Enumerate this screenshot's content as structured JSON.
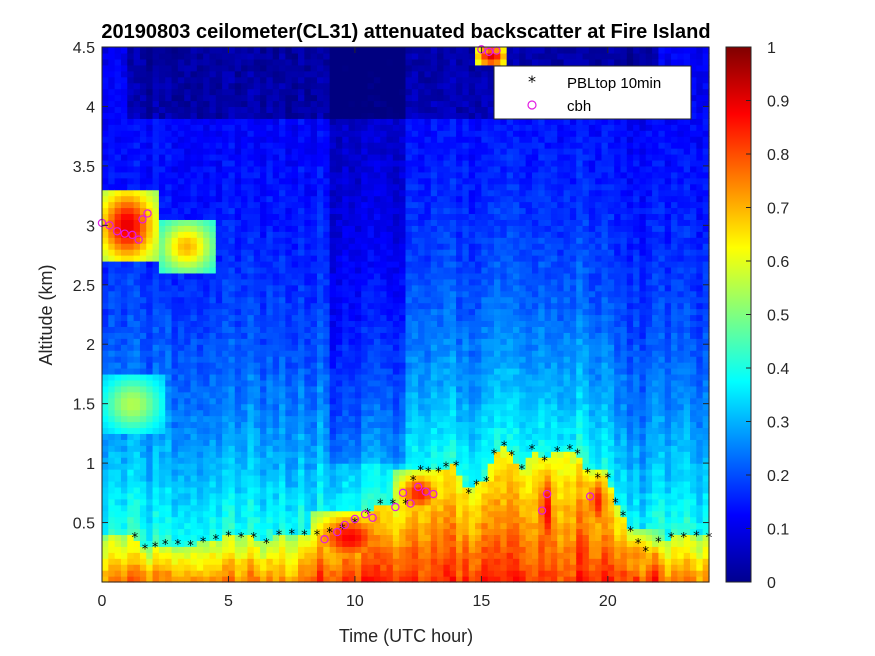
{
  "chart_data": {
    "type": "heatmap",
    "title": "20190803 ceilometer(CL31) attenuated backscatter at Fire Island",
    "xlabel": "Time (UTC hour)",
    "ylabel": "Altitude (km)",
    "xlim": [
      0,
      24
    ],
    "ylim": [
      0,
      4.5
    ],
    "xticks": [
      0,
      5,
      10,
      15,
      20
    ],
    "yticks": [
      0.5,
      1,
      1.5,
      2,
      2.5,
      3,
      3.5,
      4,
      4.5
    ],
    "colorbar": {
      "min": 0,
      "max": 1,
      "ticks": [
        0,
        0.1,
        0.2,
        0.3,
        0.4,
        0.5,
        0.6,
        0.7,
        0.8,
        0.9,
        1
      ],
      "colormap": "jet"
    },
    "legend": {
      "position": "top-right"
    },
    "series": [
      {
        "name": "PBLtop 10min",
        "marker": "*",
        "color": "#000000",
        "points": [
          [
            1.3,
            0.38
          ],
          [
            1.7,
            0.28
          ],
          [
            2.1,
            0.3
          ],
          [
            2.5,
            0.32
          ],
          [
            3.0,
            0.32
          ],
          [
            3.5,
            0.31
          ],
          [
            4.0,
            0.34
          ],
          [
            4.5,
            0.36
          ],
          [
            5.0,
            0.39
          ],
          [
            5.5,
            0.38
          ],
          [
            6.0,
            0.38
          ],
          [
            6.5,
            0.33
          ],
          [
            7.0,
            0.4
          ],
          [
            7.5,
            0.41
          ],
          [
            8.0,
            0.4
          ],
          [
            8.5,
            0.4
          ],
          [
            9.0,
            0.42
          ],
          [
            9.5,
            0.45
          ],
          [
            10.0,
            0.5
          ],
          [
            10.5,
            0.58
          ],
          [
            11.0,
            0.66
          ],
          [
            11.5,
            0.66
          ],
          [
            12.0,
            0.66
          ],
          [
            12.3,
            0.86
          ],
          [
            12.6,
            0.94
          ],
          [
            12.9,
            0.93
          ],
          [
            13.3,
            0.93
          ],
          [
            13.6,
            0.97
          ],
          [
            14.0,
            0.98
          ],
          [
            14.5,
            0.75
          ],
          [
            14.8,
            0.82
          ],
          [
            15.2,
            0.85
          ],
          [
            15.5,
            1.08
          ],
          [
            15.9,
            1.15
          ],
          [
            16.2,
            1.07
          ],
          [
            16.6,
            0.95
          ],
          [
            17.0,
            1.12
          ],
          [
            17.5,
            1.02
          ],
          [
            18.0,
            1.1
          ],
          [
            18.5,
            1.12
          ],
          [
            18.8,
            1.08
          ],
          [
            19.2,
            0.92
          ],
          [
            19.6,
            0.88
          ],
          [
            20.0,
            0.88
          ],
          [
            20.3,
            0.67
          ],
          [
            20.6,
            0.56
          ],
          [
            20.9,
            0.43
          ],
          [
            21.2,
            0.33
          ],
          [
            21.5,
            0.26
          ],
          [
            22.0,
            0.34
          ],
          [
            22.5,
            0.38
          ],
          [
            23.0,
            0.38
          ],
          [
            23.5,
            0.39
          ],
          [
            24.0,
            0.38
          ]
        ]
      },
      {
        "name": "cbh",
        "marker": "o",
        "color": "#e21be2",
        "points": [
          [
            0.0,
            3.02
          ],
          [
            0.3,
            3.0
          ],
          [
            0.6,
            2.95
          ],
          [
            0.9,
            2.93
          ],
          [
            1.2,
            2.92
          ],
          [
            1.45,
            2.88
          ],
          [
            1.6,
            3.05
          ],
          [
            1.8,
            3.1
          ],
          [
            8.8,
            0.36
          ],
          [
            9.3,
            0.42
          ],
          [
            9.6,
            0.48
          ],
          [
            10.0,
            0.53
          ],
          [
            10.4,
            0.57
          ],
          [
            10.7,
            0.54
          ],
          [
            11.6,
            0.63
          ],
          [
            11.9,
            0.75
          ],
          [
            12.2,
            0.66
          ],
          [
            12.5,
            0.8
          ],
          [
            12.8,
            0.76
          ],
          [
            13.1,
            0.74
          ],
          [
            17.4,
            0.6
          ],
          [
            17.6,
            0.74
          ],
          [
            19.3,
            0.72
          ],
          [
            15.0,
            4.48
          ],
          [
            15.3,
            4.46
          ],
          [
            15.6,
            4.47
          ]
        ]
      }
    ],
    "field_features": [
      {
        "value": 0.9,
        "t": [
          0.1,
          1.9
        ],
        "z": [
          2.75,
          3.25
        ]
      },
      {
        "value": 0.7,
        "t": [
          2.5,
          4.2
        ],
        "z": [
          2.65,
          3.0
        ]
      },
      {
        "value": 0.55,
        "t": [
          0.2,
          2.2
        ],
        "z": [
          1.3,
          1.7
        ]
      },
      {
        "value": 0.88,
        "t": [
          8.6,
          11.0
        ],
        "z": [
          0.2,
          0.55
        ]
      },
      {
        "value": 0.85,
        "t": [
          11.8,
          13.3
        ],
        "z": [
          0.6,
          0.9
        ]
      },
      {
        "value": 0.9,
        "t": [
          17.3,
          17.8
        ],
        "z": [
          0.25,
          0.95
        ]
      },
      {
        "value": 0.85,
        "t": [
          19.2,
          20.0
        ],
        "z": [
          0.45,
          0.9
        ]
      },
      {
        "value": 0.9,
        "t": [
          14.9,
          15.9
        ],
        "z": [
          4.35,
          4.5
        ]
      },
      {
        "value": 0.75,
        "t": [
          20.2,
          22.0
        ],
        "z": [
          0.05,
          0.4
        ]
      }
    ]
  }
}
